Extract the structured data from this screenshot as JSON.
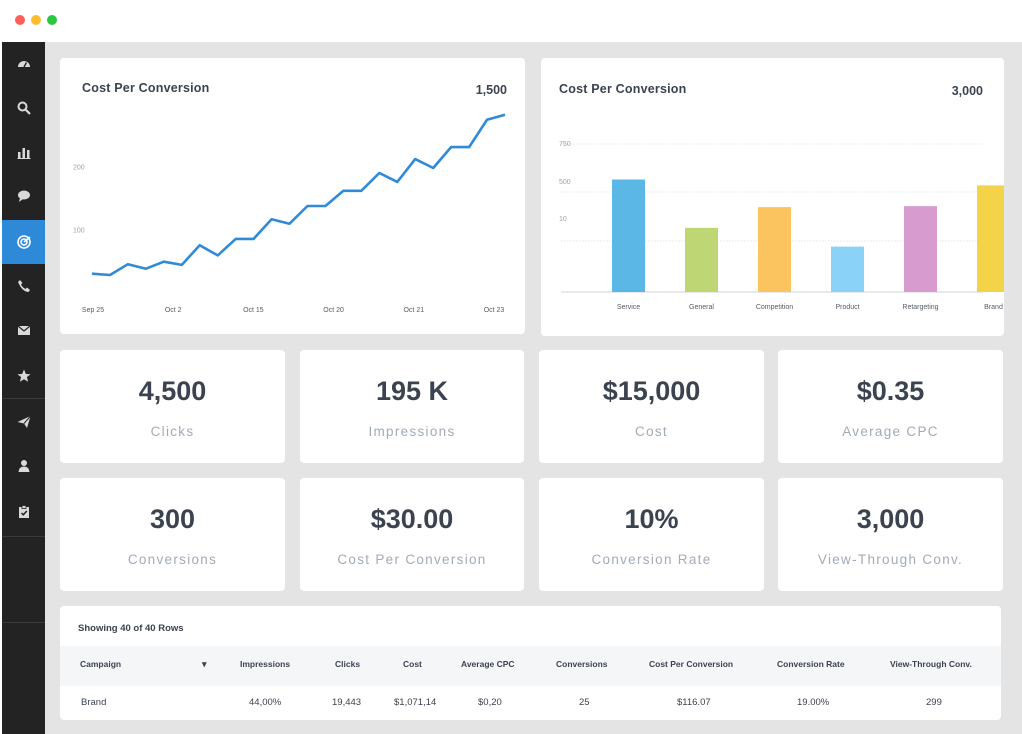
{
  "window": {
    "controls": [
      "close",
      "minimize",
      "maximize"
    ]
  },
  "sidebar": {
    "items": [
      {
        "icon": "dashboard-icon",
        "active": false
      },
      {
        "icon": "search-icon",
        "active": false
      },
      {
        "icon": "bar-chart-icon",
        "active": false
      },
      {
        "icon": "chat-bubble-icon",
        "active": false
      },
      {
        "icon": "target-icon",
        "active": true
      },
      {
        "icon": "phone-icon",
        "active": false
      },
      {
        "icon": "envelope-icon",
        "active": false
      },
      {
        "icon": "star-icon",
        "active": false
      },
      {
        "icon": "paper-plane-icon",
        "active": false
      },
      {
        "icon": "user-icon",
        "active": false
      },
      {
        "icon": "clipboard-check-icon",
        "active": false
      }
    ],
    "active_color": "#2e8ad8"
  },
  "line_card": {
    "title": "Cost Per Conversion",
    "total": "1,500"
  },
  "bar_card": {
    "title": "Cost Per Conversion",
    "total": "3,000"
  },
  "chart_data": [
    {
      "type": "line",
      "title": "Cost Per Conversion",
      "x_tick_labels": [
        "Sep 25",
        "Oct 2",
        "Oct 15",
        "Oct 20",
        "Oct 21",
        "Oct 23"
      ],
      "y_tick_labels": [
        "100",
        "200"
      ],
      "series": [
        {
          "color": "#2f8ad8",
          "values": [
            32,
            30,
            47,
            40,
            51,
            46,
            77,
            61,
            87,
            87,
            118,
            111,
            139,
            139,
            163,
            163,
            191,
            177,
            213,
            199,
            232,
            232,
            275,
            283
          ]
        }
      ],
      "ylim": [
        0,
        300
      ],
      "grid": false
    },
    {
      "type": "bar",
      "title": "Cost Per Conversion",
      "categories": [
        "Service",
        "General",
        "Competition",
        "Product",
        "Retargeting",
        "Brand"
      ],
      "values": [
        570,
        325,
        430,
        230,
        435,
        540
      ],
      "colors": [
        "#5bb8e6",
        "#bed674",
        "#fbc45e",
        "#8ad2f8",
        "#d79bd0",
        "#f3d347"
      ],
      "y_tick_labels": [
        "10",
        "500",
        "750"
      ],
      "ylim": [
        0,
        750
      ],
      "grid": true
    }
  ],
  "stats": [
    {
      "value": "4,500",
      "label": "Clicks"
    },
    {
      "value": "195 K",
      "label": "Impressions"
    },
    {
      "value": "$15,000",
      "label": "Cost"
    },
    {
      "value": "$0.35",
      "label": "Average CPC"
    },
    {
      "value": "300",
      "label": "Conversions"
    },
    {
      "value": "$30.00",
      "label": "Cost Per Conversion"
    },
    {
      "value": "10%",
      "label": "Conversion Rate"
    },
    {
      "value": "3,000",
      "label": "View-Through Conv."
    }
  ],
  "table": {
    "caption": "Showing 40 of 40 Rows",
    "sort_indicator": "▾",
    "headers": [
      "Campaign",
      "Impressions",
      "Clicks",
      "Cost",
      "Average CPC",
      "Conversions",
      "Cost Per Conversion",
      "Conversion Rate",
      "View-Through Conv."
    ],
    "rows": [
      [
        "Brand",
        "44,00%",
        "19,443",
        "$1,071,14",
        "$0,20",
        "25",
        "$116.07",
        "19.00%",
        "299"
      ]
    ]
  }
}
